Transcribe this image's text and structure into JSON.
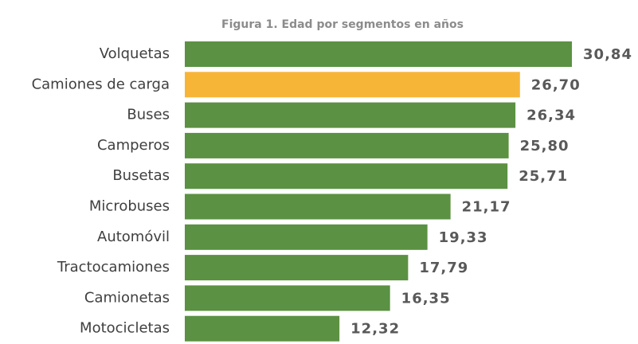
{
  "chart_data": {
    "type": "barh",
    "title": "Figura 1. Edad por segmentos en años",
    "categories": [
      "Volquetas",
      "Camiones de carga",
      "Buses",
      "Camperos",
      "Busetas",
      "Microbuses",
      "Automóvil",
      "Tractocamiones",
      "Camionetas",
      "Motocicletas"
    ],
    "values": [
      30.84,
      26.7,
      26.34,
      25.8,
      25.71,
      21.17,
      19.33,
      17.79,
      16.35,
      12.32
    ],
    "value_labels": [
      "30,84",
      "26,70",
      "26,34",
      "25,80",
      "25,71",
      "21,17",
      "19,33",
      "17,79",
      "16,35",
      "12,32"
    ],
    "colors": [
      "#5b9142",
      "#f7b538",
      "#5b9142",
      "#5b9142",
      "#5b9142",
      "#5b9142",
      "#5b9142",
      "#5b9142",
      "#5b9142",
      "#5b9142"
    ]
  }
}
